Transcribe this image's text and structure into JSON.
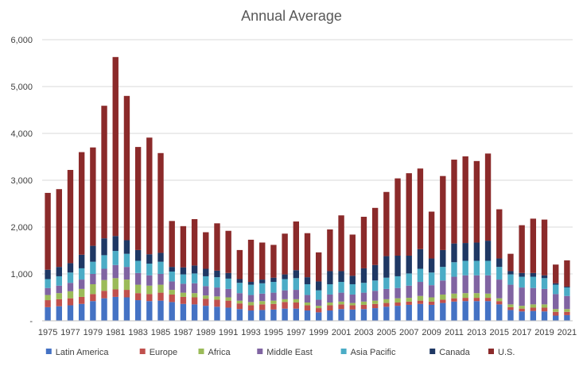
{
  "chart_data": {
    "type": "bar",
    "stacked": true,
    "title": "Annual Average",
    "xlabel": "",
    "ylabel": "",
    "ylim": [
      0,
      6000
    ],
    "y_ticks": [
      "-",
      "1,000",
      "2,000",
      "3,000",
      "4,000",
      "5,000",
      "6,000"
    ],
    "grid": true,
    "legend_position": "bottom",
    "categories": [
      "1975",
      "1976",
      "1977",
      "1978",
      "1979",
      "1980",
      "1981",
      "1982",
      "1983",
      "1984",
      "1985",
      "1986",
      "1987",
      "1988",
      "1989",
      "1990",
      "1991",
      "1992",
      "1993",
      "1994",
      "1995",
      "1996",
      "1997",
      "1998",
      "1999",
      "2000",
      "2001",
      "2002",
      "2003",
      "2004",
      "2005",
      "2006",
      "2007",
      "2008",
      "2009",
      "2010",
      "2011",
      "2012",
      "2013",
      "2014",
      "2015",
      "2016",
      "2017",
      "2018",
      "2019",
      "2020",
      "2021"
    ],
    "x_tick_labels": [
      "1975",
      "1977",
      "1979",
      "1981",
      "1983",
      "1985",
      "1987",
      "1989",
      "1991",
      "1993",
      "1995",
      "1997",
      "1999",
      "2001",
      "2003",
      "2005",
      "2007",
      "2009",
      "2011",
      "2013",
      "2015",
      "2017",
      "2019",
      "2021"
    ],
    "series": [
      {
        "name": "Latin America",
        "color": "#4472C4",
        "values": [
          290,
          310,
          330,
          360,
          420,
          480,
          510,
          500,
          440,
          420,
          430,
          400,
          360,
          350,
          320,
          300,
          280,
          250,
          220,
          230,
          240,
          260,
          260,
          220,
          180,
          220,
          250,
          240,
          250,
          270,
          300,
          320,
          340,
          360,
          340,
          380,
          410,
          420,
          420,
          420,
          350,
          230,
          200,
          210,
          200,
          110,
          120
        ]
      },
      {
        "name": "Europe",
        "color": "#C0504D",
        "values": [
          150,
          150,
          150,
          150,
          150,
          160,
          160,
          160,
          150,
          150,
          170,
          160,
          150,
          150,
          150,
          150,
          150,
          120,
          110,
          120,
          120,
          140,
          130,
          110,
          90,
          110,
          100,
          90,
          90,
          90,
          80,
          70,
          70,
          70,
          70,
          70,
          70,
          70,
          70,
          70,
          70,
          60,
          60,
          70,
          80,
          80,
          70
        ]
      },
      {
        "name": "Africa",
        "color": "#9BBB59",
        "values": [
          110,
          130,
          150,
          170,
          210,
          230,
          240,
          220,
          180,
          180,
          170,
          100,
          90,
          90,
          70,
          70,
          70,
          60,
          70,
          70,
          70,
          60,
          70,
          60,
          50,
          60,
          60,
          50,
          70,
          70,
          80,
          90,
          80,
          100,
          90,
          110,
          100,
          100,
          100,
          90,
          60,
          60,
          60,
          70,
          70,
          60,
          60
        ]
      },
      {
        "name": "Middle East",
        "color": "#8064A2",
        "values": [
          150,
          160,
          180,
          200,
          220,
          240,
          280,
          270,
          250,
          220,
          230,
          180,
          190,
          210,
          200,
          190,
          180,
          160,
          150,
          160,
          170,
          190,
          200,
          160,
          130,
          170,
          190,
          180,
          190,
          210,
          220,
          220,
          260,
          300,
          260,
          300,
          360,
          380,
          380,
          390,
          400,
          420,
          390,
          350,
          330,
          320,
          280
        ]
      },
      {
        "name": "Asia Pacific",
        "color": "#4BACC6",
        "values": [
          190,
          200,
          220,
          240,
          260,
          290,
          300,
          280,
          260,
          250,
          260,
          210,
          200,
          210,
          210,
          220,
          220,
          220,
          220,
          220,
          230,
          240,
          250,
          230,
          200,
          220,
          230,
          220,
          210,
          220,
          240,
          250,
          260,
          280,
          270,
          290,
          310,
          310,
          310,
          310,
          270,
          220,
          230,
          240,
          230,
          200,
          180
        ]
      },
      {
        "name": "Canada",
        "color": "#1F3864",
        "values": [
          200,
          200,
          200,
          290,
          340,
          360,
          320,
          290,
          230,
          200,
          190,
          100,
          150,
          170,
          160,
          140,
          120,
          80,
          60,
          80,
          90,
          100,
          170,
          150,
          190,
          280,
          230,
          180,
          310,
          330,
          460,
          440,
          380,
          420,
          300,
          360,
          400,
          380,
          390,
          430,
          180,
          70,
          80,
          80,
          60,
          30,
          20
        ]
      },
      {
        "name": "U.S.",
        "color": "#8B2A2A",
        "values": [
          1640,
          1660,
          1990,
          2190,
          2100,
          2830,
          3820,
          3080,
          2200,
          2490,
          2130,
          980,
          880,
          990,
          780,
          1010,
          900,
          620,
          900,
          790,
          700,
          870,
          1040,
          940,
          620,
          890,
          1190,
          880,
          1100,
          1220,
          1370,
          1650,
          1760,
          1720,
          1000,
          1580,
          1790,
          1850,
          1740,
          1860,
          1050,
          370,
          1020,
          1160,
          1190,
          400,
          560
        ]
      }
    ]
  }
}
